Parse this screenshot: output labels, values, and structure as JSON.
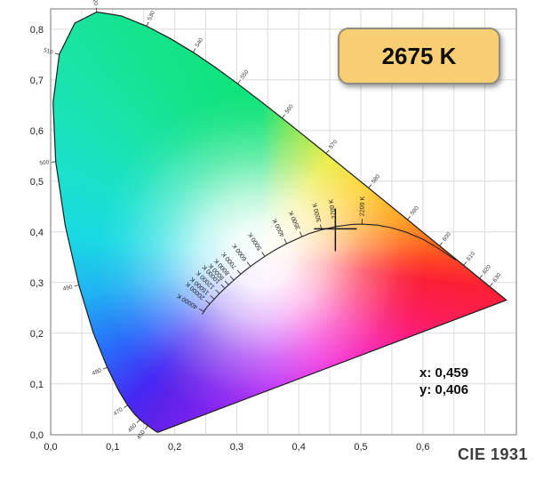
{
  "badge": {
    "cct_label": "2675 K"
  },
  "readout": {
    "x_label": "x: 0,459",
    "y_label": "y: 0,406"
  },
  "footer": {
    "diagram_label": "CIE 1931"
  },
  "colors": {
    "badge_fill": "#f7ce72",
    "badge_border": "#8e8e80",
    "grid": "#dcdcdc",
    "plot_border": "#8d8d8d",
    "locus_stroke": "#1c1c1c",
    "planckian_stroke": "#222222",
    "marker_stroke": "#141414"
  },
  "chart_data": {
    "type": "scatter",
    "subtype": "cie-1931-chromaticity-diagram",
    "title": "CIE 1931",
    "xlabel": "",
    "ylabel": "",
    "grid": true,
    "x_axis": {
      "range": [
        0,
        0.75
      ],
      "minor_step": 0.05,
      "ticks": [
        {
          "v": 0.0,
          "label": "0,0"
        },
        {
          "v": 0.1,
          "label": "0,1"
        },
        {
          "v": 0.2,
          "label": "0,2"
        },
        {
          "v": 0.3,
          "label": "0,3"
        },
        {
          "v": 0.4,
          "label": "0,4"
        },
        {
          "v": 0.5,
          "label": "0,5"
        },
        {
          "v": 0.6,
          "label": "0,6"
        }
      ]
    },
    "y_axis": {
      "range": [
        0,
        0.84
      ],
      "major_step": 0.1,
      "ticks": [
        {
          "v": 0.0,
          "label": "0,0"
        },
        {
          "v": 0.1,
          "label": "0,1"
        },
        {
          "v": 0.2,
          "label": "0,2"
        },
        {
          "v": 0.3,
          "label": "0,3"
        },
        {
          "v": 0.4,
          "label": "0,4"
        },
        {
          "v": 0.5,
          "label": "0,5"
        },
        {
          "v": 0.6,
          "label": "0,6"
        },
        {
          "v": 0.7,
          "label": "0,7"
        },
        {
          "v": 0.8,
          "label": "0,8"
        }
      ]
    },
    "marker": {
      "x": 0.459,
      "y": 0.406,
      "cct_k": 2675
    },
    "spectral_locus": [
      [
        380,
        0.1741,
        0.005
      ],
      [
        390,
        0.1738,
        0.0049
      ],
      [
        400,
        0.1733,
        0.0048
      ],
      [
        410,
        0.1726,
        0.0048
      ],
      [
        420,
        0.1714,
        0.0051
      ],
      [
        430,
        0.1689,
        0.0069
      ],
      [
        435,
        0.1669,
        0.0086
      ],
      [
        440,
        0.1644,
        0.0109
      ],
      [
        445,
        0.1611,
        0.0138
      ],
      [
        450,
        0.1566,
        0.0177
      ],
      [
        455,
        0.151,
        0.0227
      ],
      [
        460,
        0.144,
        0.0297
      ],
      [
        465,
        0.1355,
        0.0399
      ],
      [
        470,
        0.1241,
        0.0578
      ],
      [
        475,
        0.1096,
        0.0868
      ],
      [
        480,
        0.0913,
        0.1327
      ],
      [
        485,
        0.0687,
        0.2007
      ],
      [
        490,
        0.0454,
        0.295
      ],
      [
        495,
        0.0235,
        0.4127
      ],
      [
        500,
        0.0082,
        0.5384
      ],
      [
        505,
        0.0039,
        0.6548
      ],
      [
        510,
        0.0139,
        0.7502
      ],
      [
        515,
        0.0389,
        0.812
      ],
      [
        520,
        0.0743,
        0.8338
      ],
      [
        525,
        0.1142,
        0.8262
      ],
      [
        530,
        0.1547,
        0.8059
      ],
      [
        535,
        0.1929,
        0.7816
      ],
      [
        540,
        0.2296,
        0.7543
      ],
      [
        545,
        0.2658,
        0.7243
      ],
      [
        550,
        0.3016,
        0.6923
      ],
      [
        555,
        0.3373,
        0.6589
      ],
      [
        560,
        0.3731,
        0.6245
      ],
      [
        565,
        0.4087,
        0.5896
      ],
      [
        570,
        0.4441,
        0.5547
      ],
      [
        575,
        0.4788,
        0.5202
      ],
      [
        580,
        0.5125,
        0.4866
      ],
      [
        585,
        0.5448,
        0.4544
      ],
      [
        590,
        0.5752,
        0.4242
      ],
      [
        595,
        0.6029,
        0.3965
      ],
      [
        600,
        0.627,
        0.3725
      ],
      [
        605,
        0.6482,
        0.3514
      ],
      [
        610,
        0.6658,
        0.334
      ],
      [
        615,
        0.6801,
        0.3197
      ],
      [
        620,
        0.6915,
        0.3083
      ],
      [
        630,
        0.7079,
        0.292
      ],
      [
        640,
        0.719,
        0.2809
      ],
      [
        650,
        0.726,
        0.274
      ],
      [
        660,
        0.73,
        0.27
      ],
      [
        680,
        0.7334,
        0.2666
      ],
      [
        700,
        0.7347,
        0.2653
      ]
    ],
    "wavelength_ticks": [
      450,
      460,
      470,
      480,
      490,
      500,
      510,
      520,
      530,
      540,
      550,
      560,
      570,
      580,
      590,
      600,
      610,
      620,
      630
    ],
    "planckian_locus": [
      [
        1000,
        0.6528,
        0.3444
      ],
      [
        1200,
        0.6249,
        0.3676
      ],
      [
        1400,
        0.5996,
        0.3858
      ],
      [
        1600,
        0.5732,
        0.3993
      ],
      [
        1800,
        0.5491,
        0.4082
      ],
      [
        2000,
        0.5267,
        0.4133
      ],
      [
        2200,
        0.5018,
        0.4153
      ],
      [
        2400,
        0.4857,
        0.4147
      ],
      [
        2700,
        0.4599,
        0.4106
      ],
      [
        3000,
        0.4369,
        0.4041
      ],
      [
        3300,
        0.4183,
        0.3974
      ],
      [
        3500,
        0.4053,
        0.3907
      ],
      [
        4000,
        0.3805,
        0.3768
      ],
      [
        4500,
        0.3608,
        0.3636
      ],
      [
        5000,
        0.3451,
        0.3516
      ],
      [
        5500,
        0.3325,
        0.3411
      ],
      [
        6000,
        0.3221,
        0.3318
      ],
      [
        6500,
        0.3135,
        0.3237
      ],
      [
        7000,
        0.3064,
        0.3166
      ],
      [
        7500,
        0.3004,
        0.3103
      ],
      [
        8000,
        0.2952,
        0.3048
      ],
      [
        9000,
        0.2869,
        0.2956
      ],
      [
        10000,
        0.2807,
        0.2884
      ],
      [
        12000,
        0.2719,
        0.2782
      ],
      [
        15000,
        0.2637,
        0.2673
      ],
      [
        20000,
        0.2565,
        0.2577
      ],
      [
        25000,
        0.2522,
        0.2518
      ],
      [
        30000,
        0.2497,
        0.2478
      ],
      [
        40000,
        0.247,
        0.2425
      ]
    ],
    "cct_ticks": [
      {
        "t": 2200,
        "label": "2200 K"
      },
      {
        "t": 2700,
        "label": "2700 K"
      },
      {
        "t": 3000,
        "label": "3000 K"
      },
      {
        "t": 3500,
        "label": "3500 K"
      },
      {
        "t": 4000,
        "label": "4000 K"
      },
      {
        "t": 5000,
        "label": "5000 K"
      },
      {
        "t": 6000,
        "label": "6000 K"
      },
      {
        "t": 7000,
        "label": "7000 K"
      },
      {
        "t": 8000,
        "label": "8000 K"
      },
      {
        "t": 9000,
        "label": "9000 K"
      },
      {
        "t": 10000,
        "label": "10000 K"
      },
      {
        "t": 12000,
        "label": "12000 K"
      },
      {
        "t": 15000,
        "label": "15000 K"
      },
      {
        "t": 20000,
        "label": "20000 K"
      },
      {
        "t": 40000,
        "label": "40000 K"
      }
    ]
  }
}
